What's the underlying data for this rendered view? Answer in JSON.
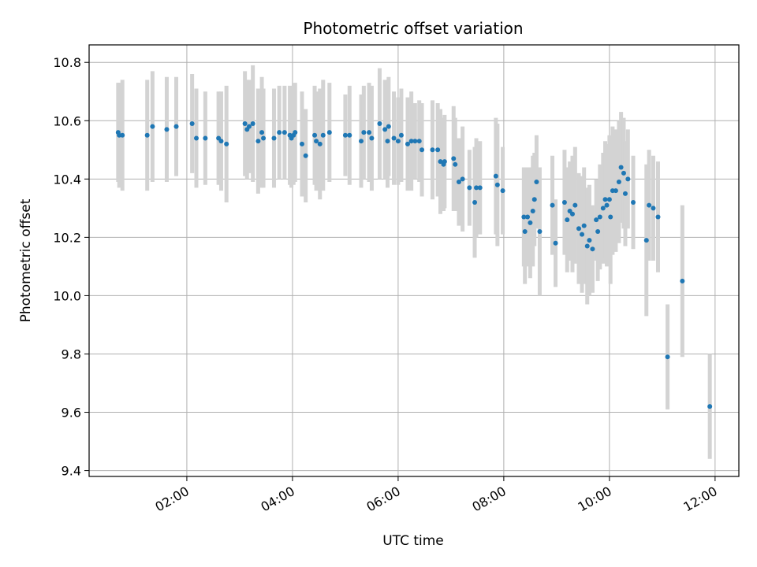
{
  "chart_data": {
    "type": "scatter",
    "title": "Photometric offset variation",
    "xlabel": "UTC time",
    "ylabel": "Photometric offset",
    "x_ticks": [
      "02:00",
      "04:00",
      "06:00",
      "08:00",
      "10:00",
      "12:00"
    ],
    "x_tick_hours": [
      2,
      4,
      6,
      8,
      10,
      12
    ],
    "xlim_hours": [
      0.15,
      12.45
    ],
    "y_ticks": [
      "9.4",
      "9.6",
      "9.8",
      "10.0",
      "10.2",
      "10.4",
      "10.6",
      "10.8"
    ],
    "y_tick_values": [
      9.4,
      9.6,
      9.8,
      10.0,
      10.2,
      10.4,
      10.6,
      10.8
    ],
    "ylim": [
      9.38,
      10.86
    ],
    "grid": true,
    "marker_color": "#1f77b4",
    "errorbar_color": "#d3d3d3",
    "x_unit": "hours UTC",
    "points": [
      {
        "x": 0.7,
        "y": 10.56,
        "err": 0.17
      },
      {
        "x": 0.72,
        "y": 10.55,
        "err": 0.18
      },
      {
        "x": 0.78,
        "y": 10.55,
        "err": 0.19
      },
      {
        "x": 1.25,
        "y": 10.55,
        "err": 0.19
      },
      {
        "x": 1.35,
        "y": 10.58,
        "err": 0.19
      },
      {
        "x": 1.62,
        "y": 10.57,
        "err": 0.18
      },
      {
        "x": 1.8,
        "y": 10.58,
        "err": 0.17
      },
      {
        "x": 2.1,
        "y": 10.59,
        "err": 0.17
      },
      {
        "x": 2.18,
        "y": 10.54,
        "err": 0.17
      },
      {
        "x": 2.35,
        "y": 10.54,
        "err": 0.16
      },
      {
        "x": 2.6,
        "y": 10.54,
        "err": 0.16
      },
      {
        "x": 2.65,
        "y": 10.53,
        "err": 0.17
      },
      {
        "x": 2.75,
        "y": 10.52,
        "err": 0.2
      },
      {
        "x": 3.1,
        "y": 10.59,
        "err": 0.18
      },
      {
        "x": 3.14,
        "y": 10.57,
        "err": 0.17
      },
      {
        "x": 3.18,
        "y": 10.58,
        "err": 0.16
      },
      {
        "x": 3.25,
        "y": 10.59,
        "err": 0.2
      },
      {
        "x": 3.35,
        "y": 10.53,
        "err": 0.18
      },
      {
        "x": 3.42,
        "y": 10.56,
        "err": 0.19
      },
      {
        "x": 3.45,
        "y": 10.54,
        "err": 0.17
      },
      {
        "x": 3.65,
        "y": 10.54,
        "err": 0.17
      },
      {
        "x": 3.75,
        "y": 10.56,
        "err": 0.16
      },
      {
        "x": 3.85,
        "y": 10.56,
        "err": 0.16
      },
      {
        "x": 3.95,
        "y": 10.55,
        "err": 0.17
      },
      {
        "x": 3.98,
        "y": 10.54,
        "err": 0.17
      },
      {
        "x": 4.02,
        "y": 10.55,
        "err": 0.17
      },
      {
        "x": 4.05,
        "y": 10.56,
        "err": 0.17
      },
      {
        "x": 4.18,
        "y": 10.52,
        "err": 0.18
      },
      {
        "x": 4.25,
        "y": 10.48,
        "err": 0.16
      },
      {
        "x": 4.42,
        "y": 10.55,
        "err": 0.17
      },
      {
        "x": 4.45,
        "y": 10.53,
        "err": 0.17
      },
      {
        "x": 4.52,
        "y": 10.52,
        "err": 0.19
      },
      {
        "x": 4.58,
        "y": 10.55,
        "err": 0.19
      },
      {
        "x": 4.7,
        "y": 10.56,
        "err": 0.17
      },
      {
        "x": 5.0,
        "y": 10.55,
        "err": 0.14
      },
      {
        "x": 5.08,
        "y": 10.55,
        "err": 0.17
      },
      {
        "x": 5.3,
        "y": 10.53,
        "err": 0.16
      },
      {
        "x": 5.35,
        "y": 10.56,
        "err": 0.16
      },
      {
        "x": 5.45,
        "y": 10.56,
        "err": 0.17
      },
      {
        "x": 5.5,
        "y": 10.54,
        "err": 0.18
      },
      {
        "x": 5.65,
        "y": 10.59,
        "err": 0.19
      },
      {
        "x": 5.75,
        "y": 10.57,
        "err": 0.17
      },
      {
        "x": 5.8,
        "y": 10.53,
        "err": 0.16
      },
      {
        "x": 5.82,
        "y": 10.58,
        "err": 0.17
      },
      {
        "x": 5.92,
        "y": 10.54,
        "err": 0.16
      },
      {
        "x": 6.0,
        "y": 10.53,
        "err": 0.15
      },
      {
        "x": 6.06,
        "y": 10.55,
        "err": 0.16
      },
      {
        "x": 6.18,
        "y": 10.52,
        "err": 0.16
      },
      {
        "x": 6.25,
        "y": 10.53,
        "err": 0.17
      },
      {
        "x": 6.32,
        "y": 10.53,
        "err": 0.13
      },
      {
        "x": 6.4,
        "y": 10.53,
        "err": 0.14
      },
      {
        "x": 6.45,
        "y": 10.5,
        "err": 0.16
      },
      {
        "x": 6.65,
        "y": 10.5,
        "err": 0.17
      },
      {
        "x": 6.75,
        "y": 10.5,
        "err": 0.16
      },
      {
        "x": 6.8,
        "y": 10.46,
        "err": 0.18
      },
      {
        "x": 6.86,
        "y": 10.45,
        "err": 0.16
      },
      {
        "x": 6.88,
        "y": 10.46,
        "err": 0.16
      },
      {
        "x": 7.05,
        "y": 10.47,
        "err": 0.18
      },
      {
        "x": 7.08,
        "y": 10.45,
        "err": 0.16
      },
      {
        "x": 7.15,
        "y": 10.39,
        "err": 0.15
      },
      {
        "x": 7.22,
        "y": 10.4,
        "err": 0.18
      },
      {
        "x": 7.35,
        "y": 10.37,
        "err": 0.13
      },
      {
        "x": 7.45,
        "y": 10.32,
        "err": 0.19
      },
      {
        "x": 7.48,
        "y": 10.37,
        "err": 0.17
      },
      {
        "x": 7.55,
        "y": 10.37,
        "err": 0.16
      },
      {
        "x": 7.85,
        "y": 10.41,
        "err": 0.2
      },
      {
        "x": 7.88,
        "y": 10.38,
        "err": 0.21
      },
      {
        "x": 7.98,
        "y": 10.36,
        "err": 0.15
      },
      {
        "x": 8.38,
        "y": 10.27,
        "err": 0.17
      },
      {
        "x": 8.4,
        "y": 10.22,
        "err": 0.18
      },
      {
        "x": 8.45,
        "y": 10.27,
        "err": 0.17
      },
      {
        "x": 8.5,
        "y": 10.25,
        "err": 0.19
      },
      {
        "x": 8.55,
        "y": 10.29,
        "err": 0.19
      },
      {
        "x": 8.58,
        "y": 10.33,
        "err": 0.16
      },
      {
        "x": 8.62,
        "y": 10.39,
        "err": 0.16
      },
      {
        "x": 8.68,
        "y": 10.22,
        "err": 0.22
      },
      {
        "x": 8.92,
        "y": 10.31,
        "err": 0.17
      },
      {
        "x": 8.98,
        "y": 10.18,
        "err": 0.15
      },
      {
        "x": 9.15,
        "y": 10.32,
        "err": 0.18
      },
      {
        "x": 9.2,
        "y": 10.26,
        "err": 0.18
      },
      {
        "x": 9.25,
        "y": 10.29,
        "err": 0.17
      },
      {
        "x": 9.3,
        "y": 10.28,
        "err": 0.2
      },
      {
        "x": 9.35,
        "y": 10.31,
        "err": 0.2
      },
      {
        "x": 9.42,
        "y": 10.23,
        "err": 0.19
      },
      {
        "x": 9.48,
        "y": 10.21,
        "err": 0.2
      },
      {
        "x": 9.52,
        "y": 10.24,
        "err": 0.2
      },
      {
        "x": 9.58,
        "y": 10.17,
        "err": 0.2
      },
      {
        "x": 9.62,
        "y": 10.19,
        "err": 0.19
      },
      {
        "x": 9.68,
        "y": 10.16,
        "err": 0.15
      },
      {
        "x": 9.75,
        "y": 10.26,
        "err": 0.14
      },
      {
        "x": 9.78,
        "y": 10.22,
        "err": 0.17
      },
      {
        "x": 9.82,
        "y": 10.27,
        "err": 0.18
      },
      {
        "x": 9.88,
        "y": 10.3,
        "err": 0.19
      },
      {
        "x": 9.92,
        "y": 10.33,
        "err": 0.2
      },
      {
        "x": 9.95,
        "y": 10.31,
        "err": 0.21
      },
      {
        "x": 10.0,
        "y": 10.33,
        "err": 0.22
      },
      {
        "x": 10.02,
        "y": 10.27,
        "err": 0.23
      },
      {
        "x": 10.06,
        "y": 10.36,
        "err": 0.22
      },
      {
        "x": 10.12,
        "y": 10.36,
        "err": 0.21
      },
      {
        "x": 10.18,
        "y": 10.39,
        "err": 0.21
      },
      {
        "x": 10.22,
        "y": 10.44,
        "err": 0.19
      },
      {
        "x": 10.27,
        "y": 10.42,
        "err": 0.19
      },
      {
        "x": 10.3,
        "y": 10.35,
        "err": 0.18
      },
      {
        "x": 10.35,
        "y": 10.4,
        "err": 0.17
      },
      {
        "x": 10.45,
        "y": 10.32,
        "err": 0.16
      },
      {
        "x": 10.7,
        "y": 10.19,
        "err": 0.26
      },
      {
        "x": 10.75,
        "y": 10.31,
        "err": 0.19
      },
      {
        "x": 10.83,
        "y": 10.3,
        "err": 0.18
      },
      {
        "x": 10.92,
        "y": 10.27,
        "err": 0.19
      },
      {
        "x": 11.1,
        "y": 9.79,
        "err": 0.18
      },
      {
        "x": 11.38,
        "y": 10.05,
        "err": 0.26
      },
      {
        "x": 11.9,
        "y": 9.62,
        "err": 0.18
      }
    ]
  }
}
